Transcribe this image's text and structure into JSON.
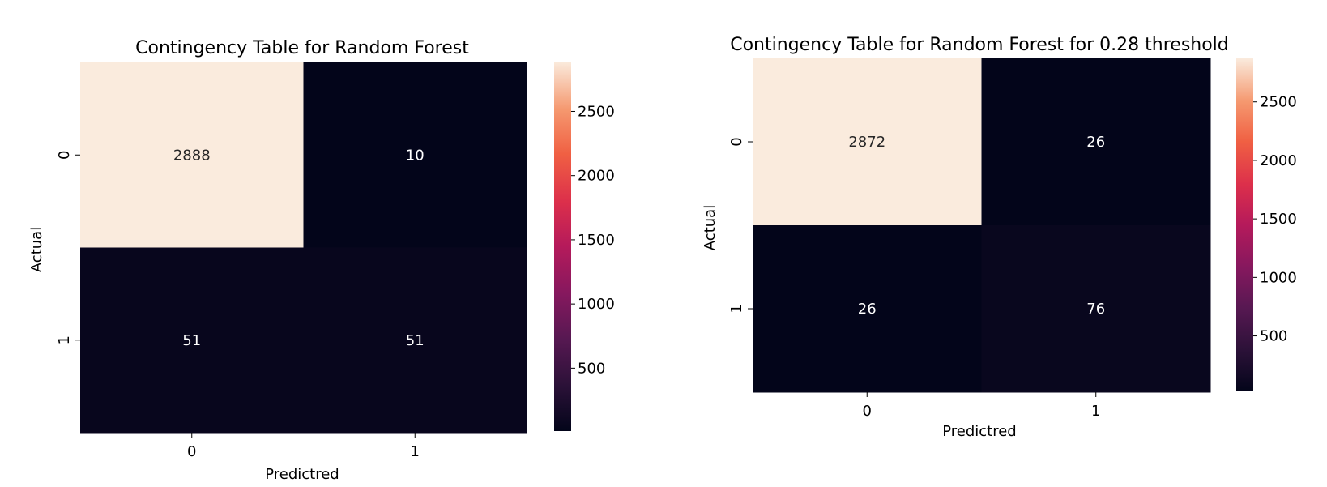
{
  "chart_data": [
    {
      "type": "heatmap",
      "title": "Contingency Table for Random Forest",
      "xlabel": "Predictred",
      "ylabel": "Actual",
      "x_categories": [
        "0",
        "1"
      ],
      "y_categories": [
        "0",
        "1"
      ],
      "values": [
        [
          2888,
          10
        ],
        [
          51,
          51
        ]
      ],
      "colorbar": {
        "min": 10,
        "max": 2888,
        "ticks": [
          500,
          1000,
          1500,
          2000,
          2500
        ]
      },
      "colormap": "rocket"
    },
    {
      "type": "heatmap",
      "title": "Contingency Table for Random Forest for 0.28 threshold",
      "xlabel": "Predictred",
      "ylabel": "Actual",
      "x_categories": [
        "0",
        "1"
      ],
      "y_categories": [
        "0",
        "1"
      ],
      "values": [
        [
          2872,
          26
        ],
        [
          26,
          76
        ]
      ],
      "colorbar": {
        "min": 26,
        "max": 2872,
        "ticks": [
          500,
          1000,
          1500,
          2000,
          2500
        ]
      },
      "colormap": "rocket"
    }
  ]
}
